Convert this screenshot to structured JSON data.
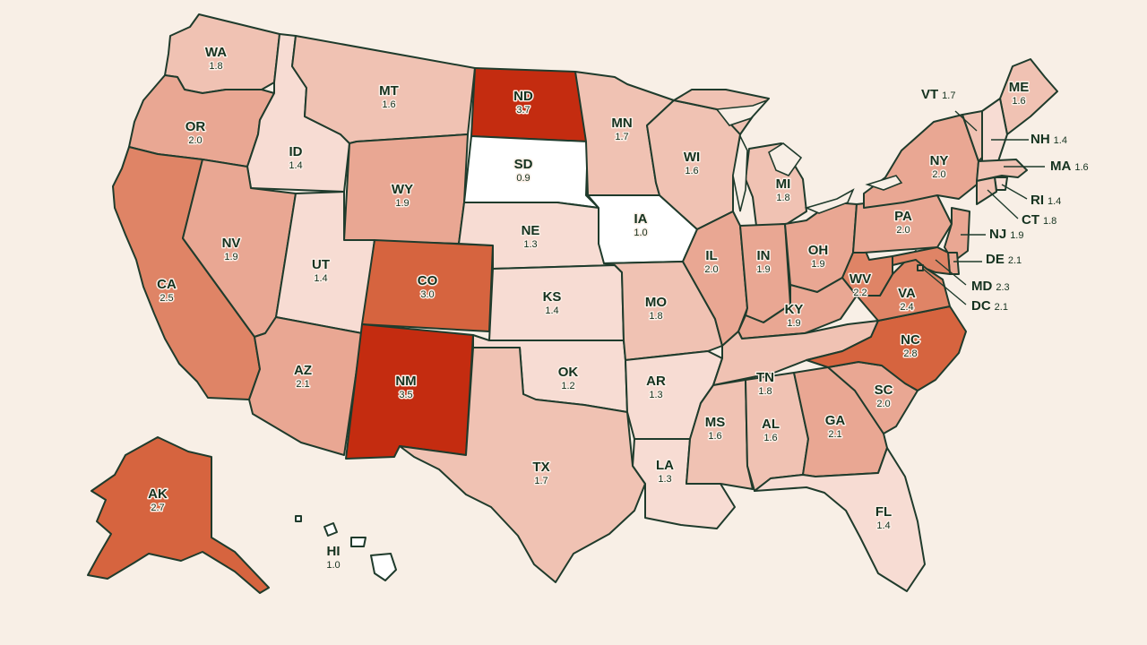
{
  "colors": {
    "background": "#f8efe6",
    "border": "#1f3b2c",
    "text": "#14321f",
    "scale": [
      "#ffffff",
      "#f7dcd3",
      "#f0c2b3",
      "#e9a793",
      "#df8466",
      "#d6643f",
      "#c42c10"
    ]
  },
  "states": [
    {
      "id": "WA",
      "abbr": "WA",
      "value": "1.8"
    },
    {
      "id": "OR",
      "abbr": "OR",
      "value": "2.0"
    },
    {
      "id": "CA",
      "abbr": "CA",
      "value": "2.5"
    },
    {
      "id": "ID",
      "abbr": "ID",
      "value": "1.4"
    },
    {
      "id": "NV",
      "abbr": "NV",
      "value": "1.9"
    },
    {
      "id": "MT",
      "abbr": "MT",
      "value": "1.6"
    },
    {
      "id": "WY",
      "abbr": "WY",
      "value": "1.9"
    },
    {
      "id": "UT",
      "abbr": "UT",
      "value": "1.4"
    },
    {
      "id": "AZ",
      "abbr": "AZ",
      "value": "2.1"
    },
    {
      "id": "CO",
      "abbr": "CO",
      "value": "3.0"
    },
    {
      "id": "NM",
      "abbr": "NM",
      "value": "3.5"
    },
    {
      "id": "ND",
      "abbr": "ND",
      "value": "3.7"
    },
    {
      "id": "SD",
      "abbr": "SD",
      "value": "0.9"
    },
    {
      "id": "NE",
      "abbr": "NE",
      "value": "1.3"
    },
    {
      "id": "KS",
      "abbr": "KS",
      "value": "1.4"
    },
    {
      "id": "OK",
      "abbr": "OK",
      "value": "1.2"
    },
    {
      "id": "TX",
      "abbr": "TX",
      "value": "1.7"
    },
    {
      "id": "MN",
      "abbr": "MN",
      "value": "1.7"
    },
    {
      "id": "IA",
      "abbr": "IA",
      "value": "1.0"
    },
    {
      "id": "MO",
      "abbr": "MO",
      "value": "1.8"
    },
    {
      "id": "AR",
      "abbr": "AR",
      "value": "1.3"
    },
    {
      "id": "LA",
      "abbr": "LA",
      "value": "1.3"
    },
    {
      "id": "WI",
      "abbr": "WI",
      "value": "1.6"
    },
    {
      "id": "IL",
      "abbr": "IL",
      "value": "2.0"
    },
    {
      "id": "MI",
      "abbr": "MI",
      "value": "1.8"
    },
    {
      "id": "IN",
      "abbr": "IN",
      "value": "1.9"
    },
    {
      "id": "OH",
      "abbr": "OH",
      "value": "1.9"
    },
    {
      "id": "KY",
      "abbr": "KY",
      "value": "1.9"
    },
    {
      "id": "TN",
      "abbr": "TN",
      "value": "1.8"
    },
    {
      "id": "MS",
      "abbr": "MS",
      "value": "1.6"
    },
    {
      "id": "AL",
      "abbr": "AL",
      "value": "1.6"
    },
    {
      "id": "GA",
      "abbr": "GA",
      "value": "2.1"
    },
    {
      "id": "FL",
      "abbr": "FL",
      "value": "1.4"
    },
    {
      "id": "SC",
      "abbr": "SC",
      "value": "2.0"
    },
    {
      "id": "NC",
      "abbr": "NC",
      "value": "2.8"
    },
    {
      "id": "VA",
      "abbr": "VA",
      "value": "2.4"
    },
    {
      "id": "WV",
      "abbr": "WV",
      "value": "2.2"
    },
    {
      "id": "PA",
      "abbr": "PA",
      "value": "2.0"
    },
    {
      "id": "NY",
      "abbr": "NY",
      "value": "2.0"
    },
    {
      "id": "ME",
      "abbr": "ME",
      "value": "1.6"
    },
    {
      "id": "VT",
      "abbr": "VT",
      "value": "1.7"
    },
    {
      "id": "NH",
      "abbr": "NH",
      "value": "1.4"
    },
    {
      "id": "MA",
      "abbr": "MA",
      "value": "1.6"
    },
    {
      "id": "RI",
      "abbr": "RI",
      "value": "1.4"
    },
    {
      "id": "CT",
      "abbr": "CT",
      "value": "1.8"
    },
    {
      "id": "NJ",
      "abbr": "NJ",
      "value": "1.9"
    },
    {
      "id": "DE",
      "abbr": "DE",
      "value": "2.1"
    },
    {
      "id": "MD",
      "abbr": "MD",
      "value": "2.3"
    },
    {
      "id": "DC",
      "abbr": "DC",
      "value": "2.1"
    },
    {
      "id": "AK",
      "abbr": "AK",
      "value": "2.7"
    },
    {
      "id": "HI",
      "abbr": "HI",
      "value": "1.0"
    }
  ]
}
